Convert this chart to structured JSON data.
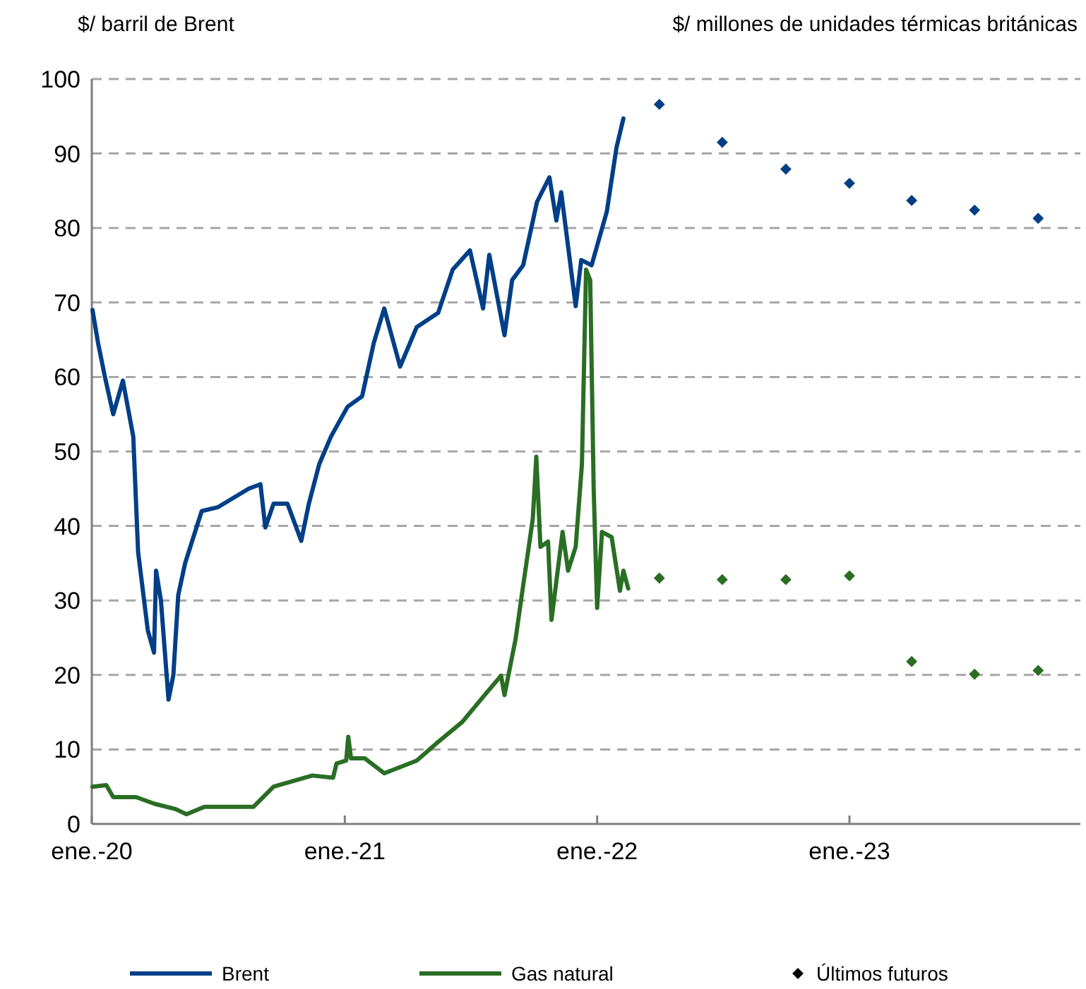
{
  "chart_data": {
    "type": "line",
    "ylabel": "$/ barril de Brent",
    "y2label": "$/ millones de unidades térmicas británicas",
    "xlim": [
      "2020-01-01",
      "2023-12-01"
    ],
    "xticks": [
      {
        "value": "2020-01-01",
        "label": "ene.-20"
      },
      {
        "value": "2021-01-01",
        "label": "ene.-21"
      },
      {
        "value": "2022-01-01",
        "label": "ene.-22"
      },
      {
        "value": "2023-01-01",
        "label": "ene.-23"
      }
    ],
    "ylim": [
      0,
      100
    ],
    "yticks": [
      0,
      10,
      20,
      30,
      40,
      50,
      60,
      70,
      80,
      90,
      100
    ],
    "grid": "y",
    "legend": "bottom",
    "marker": "none",
    "line_style": "solid",
    "series": [
      {
        "name": "Brent",
        "color": "#003f87",
        "x": [
          "2020-01-02",
          "2020-01-10",
          "2020-01-20",
          "2020-02-01",
          "2020-02-15",
          "2020-03-01",
          "2020-03-08",
          "2020-03-22",
          "2020-03-31",
          "2020-04-03",
          "2020-04-10",
          "2020-04-21",
          "2020-04-28",
          "2020-05-05",
          "2020-05-15",
          "2020-06-08",
          "2020-07-01",
          "2020-08-15",
          "2020-09-01",
          "2020-09-08",
          "2020-09-20",
          "2020-10-10",
          "2020-10-30",
          "2020-11-10",
          "2020-11-25",
          "2020-12-12",
          "2021-01-05",
          "2021-01-26",
          "2021-02-12",
          "2021-02-27",
          "2021-03-22",
          "2021-04-15",
          "2021-05-16",
          "2021-06-06",
          "2021-07-01",
          "2021-07-20",
          "2021-07-29",
          "2021-08-20",
          "2021-08-31",
          "2021-09-16",
          "2021-10-06",
          "2021-10-24",
          "2021-11-03",
          "2021-11-10",
          "2021-12-01",
          "2021-12-09",
          "2021-12-24",
          "2022-01-15",
          "2022-01-29",
          "2022-02-08"
        ],
        "values": [
          69,
          64.6,
          60,
          55,
          59.5,
          52,
          36.5,
          26,
          23,
          34,
          30,
          16.7,
          20,
          30.7,
          35,
          42,
          42.5,
          45,
          45.6,
          39.8,
          43,
          43,
          38,
          43,
          48.3,
          52,
          56,
          57.4,
          64.6,
          69.2,
          61.4,
          66.7,
          68.6,
          74.4,
          77,
          69.2,
          76.4,
          65.6,
          73,
          75,
          83.5,
          86.8,
          81,
          84.8,
          69.5,
          75.7,
          75,
          82.2,
          90.8,
          94.7
        ]
      },
      {
        "name": "Gas natural",
        "color": "#2a6e24",
        "x": [
          "2020-01-02",
          "2020-01-22",
          "2020-02-01",
          "2020-03-05",
          "2020-04-01",
          "2020-05-01",
          "2020-05-17",
          "2020-06-12",
          "2020-08-22",
          "2020-09-20",
          "2020-11-15",
          "2020-12-15",
          "2020-12-20",
          "2021-01-03",
          "2021-01-06",
          "2021-01-10",
          "2021-01-30",
          "2021-02-27",
          "2021-04-15",
          "2021-05-16",
          "2021-06-20",
          "2021-07-25",
          "2021-08-15",
          "2021-08-20",
          "2021-09-05",
          "2021-09-16",
          "2021-09-30",
          "2021-10-05",
          "2021-10-11",
          "2021-10-22",
          "2021-10-27",
          "2021-11-12",
          "2021-11-20",
          "2021-12-01",
          "2021-12-10",
          "2021-12-16",
          "2021-12-22",
          "2021-12-27",
          "2022-01-01",
          "2022-01-08",
          "2022-01-22",
          "2022-02-03",
          "2022-02-08",
          "2022-02-15"
        ],
        "values": [
          5,
          5.2,
          3.6,
          3.6,
          2.7,
          2,
          1.3,
          2.3,
          2.3,
          5,
          6.5,
          6.2,
          8.1,
          8.5,
          11.7,
          8.8,
          8.8,
          6.8,
          8.5,
          11,
          13.7,
          17.6,
          19.9,
          17.3,
          24.8,
          32,
          41,
          49.3,
          37.2,
          37.9,
          27.4,
          39.2,
          34,
          37.2,
          48.3,
          74.4,
          73,
          45,
          29,
          39.2,
          38.5,
          31.3,
          34,
          31.6
        ]
      },
      {
        "type": "scatter",
        "color": "#003f87",
        "marker": "diamond",
        "x": [
          "2022-04-01",
          "2022-07-01",
          "2022-10-01",
          "2023-01-01",
          "2023-04-01",
          "2023-07-01",
          "2023-10-01"
        ],
        "values": [
          96.6,
          91.5,
          87.9,
          86,
          83.7,
          82.4,
          81.3
        ]
      },
      {
        "type": "scatter",
        "color": "#2a6e24",
        "marker": "diamond",
        "x": [
          "2022-04-01",
          "2022-07-01",
          "2022-10-01",
          "2023-01-01",
          "2023-04-01",
          "2023-07-01",
          "2023-10-01"
        ],
        "values": [
          33,
          32.8,
          32.8,
          33.3,
          21.8,
          20.1,
          20.6
        ]
      }
    ],
    "annotations": [
      "Últimos futuros"
    ]
  }
}
